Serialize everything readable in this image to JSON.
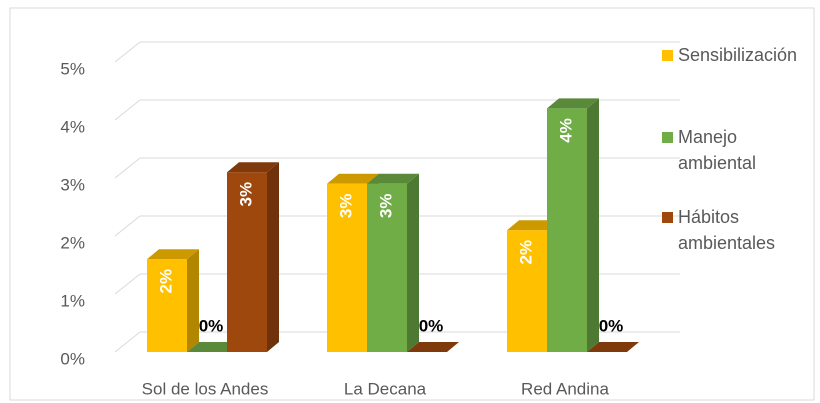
{
  "chart_data": {
    "type": "bar3d",
    "categories": [
      "Sol de los Andes",
      "La Decana",
      "Red Andina"
    ],
    "series": [
      {
        "name": "Sensibilización",
        "color": "#FFC000",
        "values": [
          1.6,
          2.9,
          2.1
        ],
        "value_labels": [
          "2%",
          "3%",
          "2%"
        ]
      },
      {
        "name": "Manejo ambiental",
        "color": "#70AD47",
        "values": [
          0,
          2.9,
          4.2
        ],
        "value_labels": [
          "0%",
          "3%",
          "4%"
        ]
      },
      {
        "name": "Hábitos ambientales",
        "color": "#9E480E",
        "values": [
          3.1,
          0,
          0
        ],
        "value_labels": [
          "3%",
          "0%",
          "0%"
        ]
      }
    ],
    "ylim": [
      0,
      5
    ],
    "yticks": [
      {
        "value": 0,
        "label": "0%"
      },
      {
        "value": 1,
        "label": "1%"
      },
      {
        "value": 2,
        "label": "2%"
      },
      {
        "value": 3,
        "label": "3%"
      },
      {
        "value": 4,
        "label": "4%"
      },
      {
        "value": 5,
        "label": "5%"
      }
    ],
    "grid": true,
    "legend": "right"
  }
}
